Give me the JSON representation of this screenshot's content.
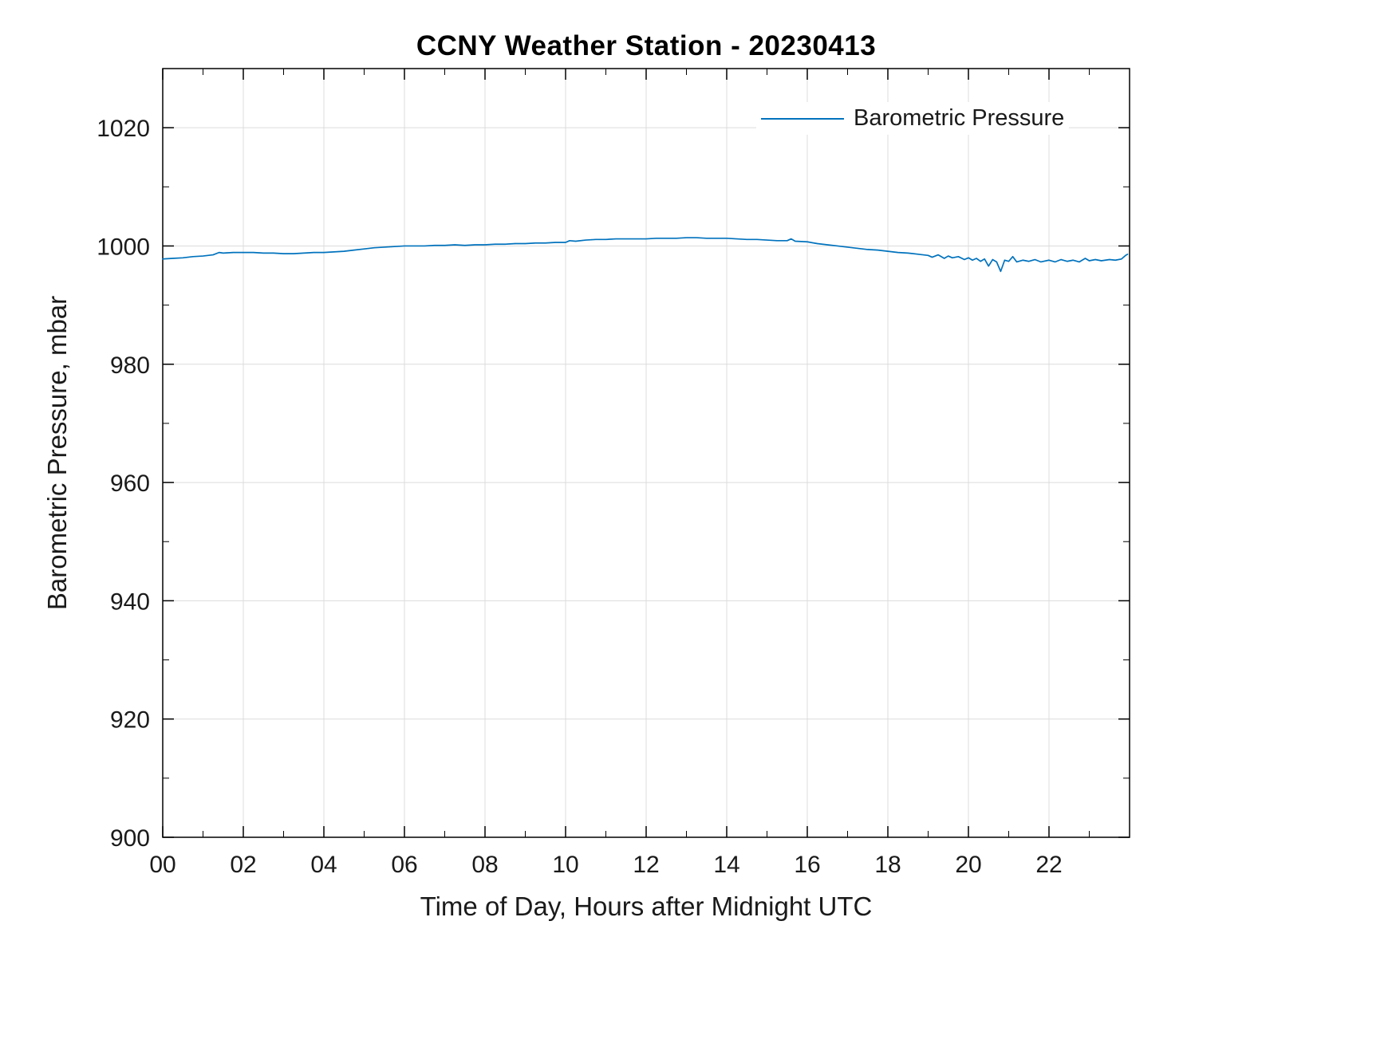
{
  "chart_data": {
    "type": "line",
    "title": "CCNY Weather Station - 20230413",
    "xlabel": "Time of Day, Hours after Midnight UTC",
    "ylabel": "Barometric Pressure, mbar",
    "xlim": [
      0,
      24
    ],
    "ylim": [
      900,
      1030
    ],
    "x_ticks": [
      0,
      2,
      4,
      6,
      8,
      10,
      12,
      14,
      16,
      18,
      20,
      22
    ],
    "x_tick_labels": [
      "00",
      "02",
      "04",
      "06",
      "08",
      "10",
      "12",
      "14",
      "16",
      "18",
      "20",
      "22"
    ],
    "y_ticks": [
      900,
      920,
      940,
      960,
      980,
      1000,
      1020
    ],
    "y_tick_labels": [
      "900",
      "920",
      "940",
      "960",
      "980",
      "1000",
      "1020"
    ],
    "grid": true,
    "grid_color": "#dcdcdc",
    "line_color": "#0072BD",
    "legend": {
      "position": "northeast",
      "entries": [
        "Barometric Pressure"
      ]
    },
    "series": [
      {
        "name": "Barometric Pressure",
        "x": [
          0,
          0.25,
          0.5,
          0.75,
          1,
          1.25,
          1.4,
          1.5,
          1.75,
          2,
          2.25,
          2.5,
          2.75,
          3,
          3.25,
          3.5,
          3.75,
          4,
          4.25,
          4.5,
          4.75,
          5,
          5.25,
          5.5,
          5.75,
          6,
          6.25,
          6.5,
          6.75,
          7,
          7.25,
          7.5,
          7.75,
          8,
          8.25,
          8.5,
          8.75,
          9,
          9.25,
          9.5,
          9.75,
          10,
          10.1,
          10.25,
          10.5,
          10.75,
          11,
          11.25,
          11.5,
          11.75,
          12,
          12.25,
          12.5,
          12.75,
          13,
          13.25,
          13.5,
          13.75,
          14,
          14.25,
          14.5,
          14.75,
          15,
          15.25,
          15.5,
          15.6,
          15.7,
          16,
          16.25,
          16.5,
          16.75,
          17,
          17.25,
          17.5,
          17.75,
          18,
          18.25,
          18.5,
          18.75,
          19,
          19.1,
          19.25,
          19.4,
          19.5,
          19.6,
          19.75,
          19.9,
          20,
          20.1,
          20.2,
          20.3,
          20.4,
          20.5,
          20.6,
          20.7,
          20.8,
          20.9,
          21,
          21.1,
          21.2,
          21.35,
          21.5,
          21.65,
          21.8,
          22,
          22.15,
          22.3,
          22.45,
          22.6,
          22.75,
          22.9,
          23,
          23.15,
          23.3,
          23.5,
          23.65,
          23.8,
          23.9,
          23.95
        ],
        "y": [
          997.8,
          997.9,
          998.0,
          998.2,
          998.3,
          998.5,
          998.9,
          998.8,
          998.9,
          998.9,
          998.9,
          998.8,
          998.8,
          998.7,
          998.7,
          998.8,
          998.9,
          998.9,
          999.0,
          999.1,
          999.3,
          999.5,
          999.7,
          999.8,
          999.9,
          1000.0,
          1000.0,
          1000.0,
          1000.1,
          1000.1,
          1000.2,
          1000.1,
          1000.2,
          1000.2,
          1000.3,
          1000.3,
          1000.4,
          1000.4,
          1000.5,
          1000.5,
          1000.6,
          1000.6,
          1000.9,
          1000.8,
          1001.0,
          1001.1,
          1001.1,
          1001.2,
          1001.2,
          1001.2,
          1001.2,
          1001.3,
          1001.3,
          1001.3,
          1001.4,
          1001.4,
          1001.3,
          1001.3,
          1001.3,
          1001.2,
          1001.1,
          1001.1,
          1001.0,
          1000.9,
          1000.9,
          1001.2,
          1000.8,
          1000.7,
          1000.4,
          1000.2,
          1000.0,
          999.8,
          999.6,
          999.4,
          999.3,
          999.1,
          998.9,
          998.8,
          998.6,
          998.4,
          998.1,
          998.5,
          997.9,
          998.3,
          998.0,
          998.2,
          997.7,
          998.0,
          997.6,
          997.9,
          997.4,
          997.8,
          996.6,
          997.7,
          997.3,
          995.7,
          997.6,
          997.4,
          998.2,
          997.3,
          997.6,
          997.4,
          997.7,
          997.3,
          997.6,
          997.3,
          997.7,
          997.4,
          997.6,
          997.3,
          997.9,
          997.5,
          997.7,
          997.5,
          997.7,
          997.6,
          997.8,
          998.4,
          998.6
        ]
      }
    ]
  }
}
